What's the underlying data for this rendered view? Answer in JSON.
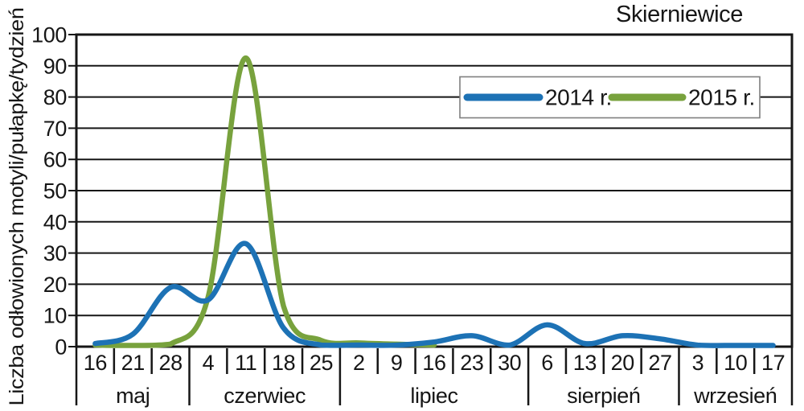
{
  "title": "Skierniewice",
  "y_axis_label": "Liczba odłowionych motyli/pułapkę/tydzień",
  "colors": {
    "series_2014": "#1d72b5",
    "series_2015": "#78a23d",
    "axis": "#161616",
    "legend_border": "#7f7f7f",
    "background": "#ffffff"
  },
  "legend": {
    "items": [
      {
        "label": "2014 r.",
        "color": "#1d72b5"
      },
      {
        "label": "2015 r.",
        "color": "#78a23d"
      }
    ]
  },
  "chart_data": {
    "type": "line",
    "title": "Skierniewice",
    "xlabel": "",
    "ylabel": "Liczba odłowionych motyli/pułapkę/tydzień",
    "ylim": [
      0,
      100
    ],
    "yticks": [
      0,
      10,
      20,
      30,
      40,
      50,
      60,
      70,
      80,
      90,
      100
    ],
    "grid": true,
    "legend_position": "top-right-inside",
    "smoothed_lines": true,
    "months": [
      {
        "name": "maj",
        "dates": [
          "16",
          "21",
          "28"
        ]
      },
      {
        "name": "czerwiec",
        "dates": [
          "4",
          "11",
          "18",
          "25"
        ]
      },
      {
        "name": "lipiec",
        "dates": [
          "2",
          "9",
          "16",
          "23",
          "30"
        ]
      },
      {
        "name": "sierpień",
        "dates": [
          "6",
          "13",
          "20",
          "27"
        ]
      },
      {
        "name": "wrzesień",
        "dates": [
          "3",
          "10",
          "17"
        ]
      }
    ],
    "categories": [
      "16",
      "21",
      "28",
      "4",
      "11",
      "18",
      "25",
      "2",
      "9",
      "16",
      "23",
      "30",
      "6",
      "13",
      "20",
      "27",
      "3",
      "10",
      "17"
    ],
    "series": [
      {
        "name": "2014 r.",
        "color": "#1d72b5",
        "values": [
          1,
          4,
          19,
          15,
          33,
          6,
          0.5,
          0.5,
          0.5,
          1.5,
          3.5,
          0.5,
          7,
          1,
          3.5,
          2.5,
          0.5,
          0.3,
          0.3
        ]
      },
      {
        "name": "2015 r.",
        "color": "#78a23d",
        "values": [
          0.5,
          0.3,
          0.8,
          16,
          92.5,
          13,
          2,
          1.2,
          0.8,
          0.5
        ],
        "note_last_point": "series ends at lipiec 16"
      }
    ]
  }
}
